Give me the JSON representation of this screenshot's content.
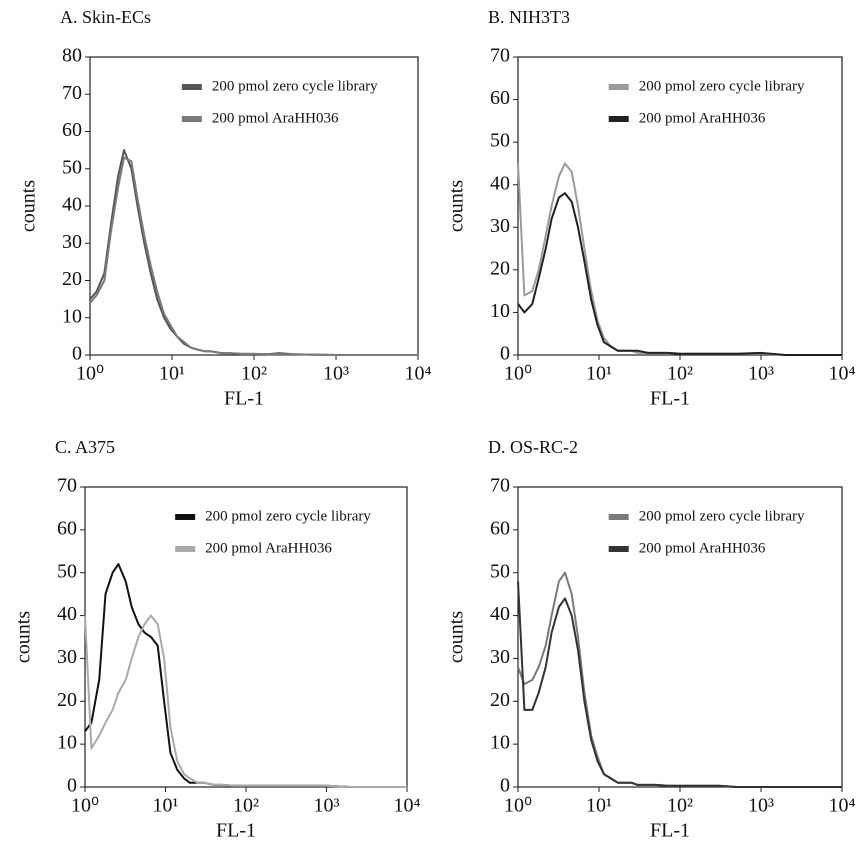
{
  "chart_data": [
    {
      "type": "line",
      "title": "A. Skin-ECs",
      "xlabel": "FL-1",
      "ylabel": "counts",
      "xscale": "log",
      "grid": false,
      "legend": "upper right",
      "xlim": [
        1,
        10000
      ],
      "ylim": [
        0,
        80
      ],
      "xticks": [
        {
          "value": 1,
          "label": "10⁰"
        },
        {
          "value": 10,
          "label": "10¹"
        },
        {
          "value": 100,
          "label": "10²"
        },
        {
          "value": 1000,
          "label": "10³"
        },
        {
          "value": 10000,
          "label": "10⁴"
        }
      ],
      "yticks": [
        0,
        10,
        20,
        30,
        40,
        50,
        60,
        70,
        80
      ],
      "x": [
        1,
        1.2,
        1.5,
        1.8,
        2.2,
        2.6,
        3.2,
        3.8,
        4.6,
        5.5,
        6.6,
        8,
        9.6,
        11.5,
        14,
        17,
        20,
        25,
        30,
        40,
        50,
        70,
        100,
        150,
        200,
        300,
        500,
        1000,
        2000,
        10000
      ],
      "series": [
        {
          "name": "200 pmol zero cycle library",
          "color": "#555555",
          "values": [
            15,
            17,
            22,
            35,
            48,
            55,
            50,
            40,
            30,
            22,
            15,
            10,
            7,
            5,
            3,
            2,
            1.5,
            1,
            1,
            0.5,
            0.5,
            0.3,
            0.3,
            0.2,
            0.5,
            0.2,
            0.1,
            0,
            0,
            0
          ]
        },
        {
          "name": "200 pmol AraHH036",
          "color": "#7a7a7a",
          "values": [
            14,
            16,
            20,
            33,
            45,
            53,
            52,
            42,
            32,
            24,
            17,
            11,
            8,
            5,
            3.5,
            2,
            1.5,
            1,
            1,
            0.5,
            0.5,
            0.3,
            0.3,
            0.2,
            0.2,
            0.2,
            0.1,
            0,
            0,
            0
          ]
        }
      ]
    },
    {
      "type": "line",
      "title": "B. NIH3T3",
      "xlabel": "FL-1",
      "ylabel": "counts",
      "xscale": "log",
      "grid": false,
      "legend": "upper right",
      "xlim": [
        1,
        10000
      ],
      "ylim": [
        0,
        70
      ],
      "xticks": [
        {
          "value": 1,
          "label": "10⁰"
        },
        {
          "value": 10,
          "label": "10¹"
        },
        {
          "value": 100,
          "label": "10²"
        },
        {
          "value": 1000,
          "label": "10³"
        },
        {
          "value": 10000,
          "label": "10⁴"
        }
      ],
      "yticks": [
        0,
        10,
        20,
        30,
        40,
        50,
        60,
        70
      ],
      "x": [
        1,
        1.2,
        1.5,
        1.8,
        2.2,
        2.6,
        3.2,
        3.8,
        4.6,
        5.5,
        6.6,
        8,
        9.6,
        11.5,
        14,
        17,
        20,
        25,
        30,
        40,
        50,
        70,
        100,
        150,
        200,
        300,
        500,
        1000,
        2000,
        10000
      ],
      "series": [
        {
          "name": "200 pmol zero cycle library",
          "color": "#9a9a9a",
          "values": [
            45,
            14,
            15,
            20,
            28,
            35,
            42,
            45,
            43,
            35,
            25,
            15,
            8,
            4,
            2,
            1,
            1,
            1,
            0.5,
            0.5,
            0.5,
            0.5,
            0.3,
            0.3,
            0.3,
            0.3,
            0.3,
            0.3,
            0,
            0
          ]
        },
        {
          "name": "200 pmol AraHH036",
          "color": "#222222",
          "values": [
            12,
            10,
            12,
            18,
            25,
            32,
            37,
            38,
            36,
            30,
            22,
            13,
            7,
            3,
            2,
            1,
            1,
            1,
            1,
            0.5,
            0.5,
            0.5,
            0.3,
            0.3,
            0.3,
            0.3,
            0.3,
            0.5,
            0,
            0
          ]
        }
      ]
    },
    {
      "type": "line",
      "title": "C. A375",
      "xlabel": "FL-1",
      "ylabel": "counts",
      "xscale": "log",
      "grid": false,
      "legend": "upper right",
      "xlim": [
        1,
        10000
      ],
      "ylim": [
        0,
        70
      ],
      "xticks": [
        {
          "value": 1,
          "label": "10⁰"
        },
        {
          "value": 10,
          "label": "10¹"
        },
        {
          "value": 100,
          "label": "10²"
        },
        {
          "value": 1000,
          "label": "10³"
        },
        {
          "value": 10000,
          "label": "10⁴"
        }
      ],
      "yticks": [
        0,
        10,
        20,
        30,
        40,
        50,
        60,
        70
      ],
      "x": [
        1,
        1.2,
        1.5,
        1.8,
        2.2,
        2.6,
        3.2,
        3.8,
        4.6,
        5.5,
        6.6,
        8,
        9.6,
        11.5,
        14,
        17,
        20,
        25,
        30,
        40,
        50,
        70,
        100,
        150,
        200,
        300,
        500,
        1000,
        2000,
        10000
      ],
      "series": [
        {
          "name": "200 pmol zero cycle library",
          "color": "#111111",
          "values": [
            13,
            15,
            25,
            45,
            50,
            52,
            48,
            42,
            38,
            36,
            35,
            33,
            20,
            8,
            4,
            2,
            1,
            1,
            1,
            0.5,
            0.5,
            0.3,
            0.3,
            0.3,
            0.3,
            0.3,
            0.3,
            0.3,
            0,
            0
          ]
        },
        {
          "name": "200 pmol AraHH036",
          "color": "#aaaaaa",
          "values": [
            40,
            9,
            12,
            15,
            18,
            22,
            25,
            30,
            35,
            38,
            40,
            38,
            30,
            14,
            6,
            3,
            2,
            1,
            1,
            0.5,
            0.5,
            0.3,
            0.3,
            0.3,
            0.3,
            0.3,
            0.3,
            0.3,
            0,
            0
          ]
        }
      ]
    },
    {
      "type": "line",
      "title": "D. OS-RC-2",
      "xlabel": "FL-1",
      "ylabel": "counts",
      "xscale": "log",
      "grid": false,
      "legend": "upper right",
      "xlim": [
        1,
        10000
      ],
      "ylim": [
        0,
        70
      ],
      "xticks": [
        {
          "value": 1,
          "label": "10⁰"
        },
        {
          "value": 10,
          "label": "10¹"
        },
        {
          "value": 100,
          "label": "10²"
        },
        {
          "value": 1000,
          "label": "10³"
        },
        {
          "value": 10000,
          "label": "10⁴"
        }
      ],
      "yticks": [
        0,
        10,
        20,
        30,
        40,
        50,
        60,
        70
      ],
      "x": [
        1,
        1.2,
        1.5,
        1.8,
        2.2,
        2.6,
        3.2,
        3.8,
        4.6,
        5.5,
        6.6,
        8,
        9.6,
        11.5,
        14,
        17,
        20,
        25,
        30,
        40,
        50,
        70,
        100,
        150,
        200,
        300,
        500,
        1000,
        2000,
        10000
      ],
      "series": [
        {
          "name": "200 pmol zero cycle library",
          "color": "#7a7a7a",
          "values": [
            28,
            24,
            25,
            28,
            33,
            40,
            48,
            50,
            45,
            35,
            22,
            12,
            7,
            3,
            2,
            1,
            1,
            1,
            0.5,
            0.5,
            0.5,
            0.3,
            0.3,
            0.3,
            0.3,
            0.3,
            0,
            0,
            0,
            0
          ]
        },
        {
          "name": "200 pmol AraHH036",
          "color": "#333333",
          "values": [
            48,
            18,
            18,
            22,
            28,
            36,
            42,
            44,
            40,
            32,
            20,
            11,
            6,
            3,
            2,
            1,
            1,
            1,
            0.5,
            0.5,
            0.5,
            0.3,
            0.3,
            0.3,
            0.3,
            0.3,
            0,
            0,
            0,
            0
          ]
        }
      ]
    }
  ]
}
